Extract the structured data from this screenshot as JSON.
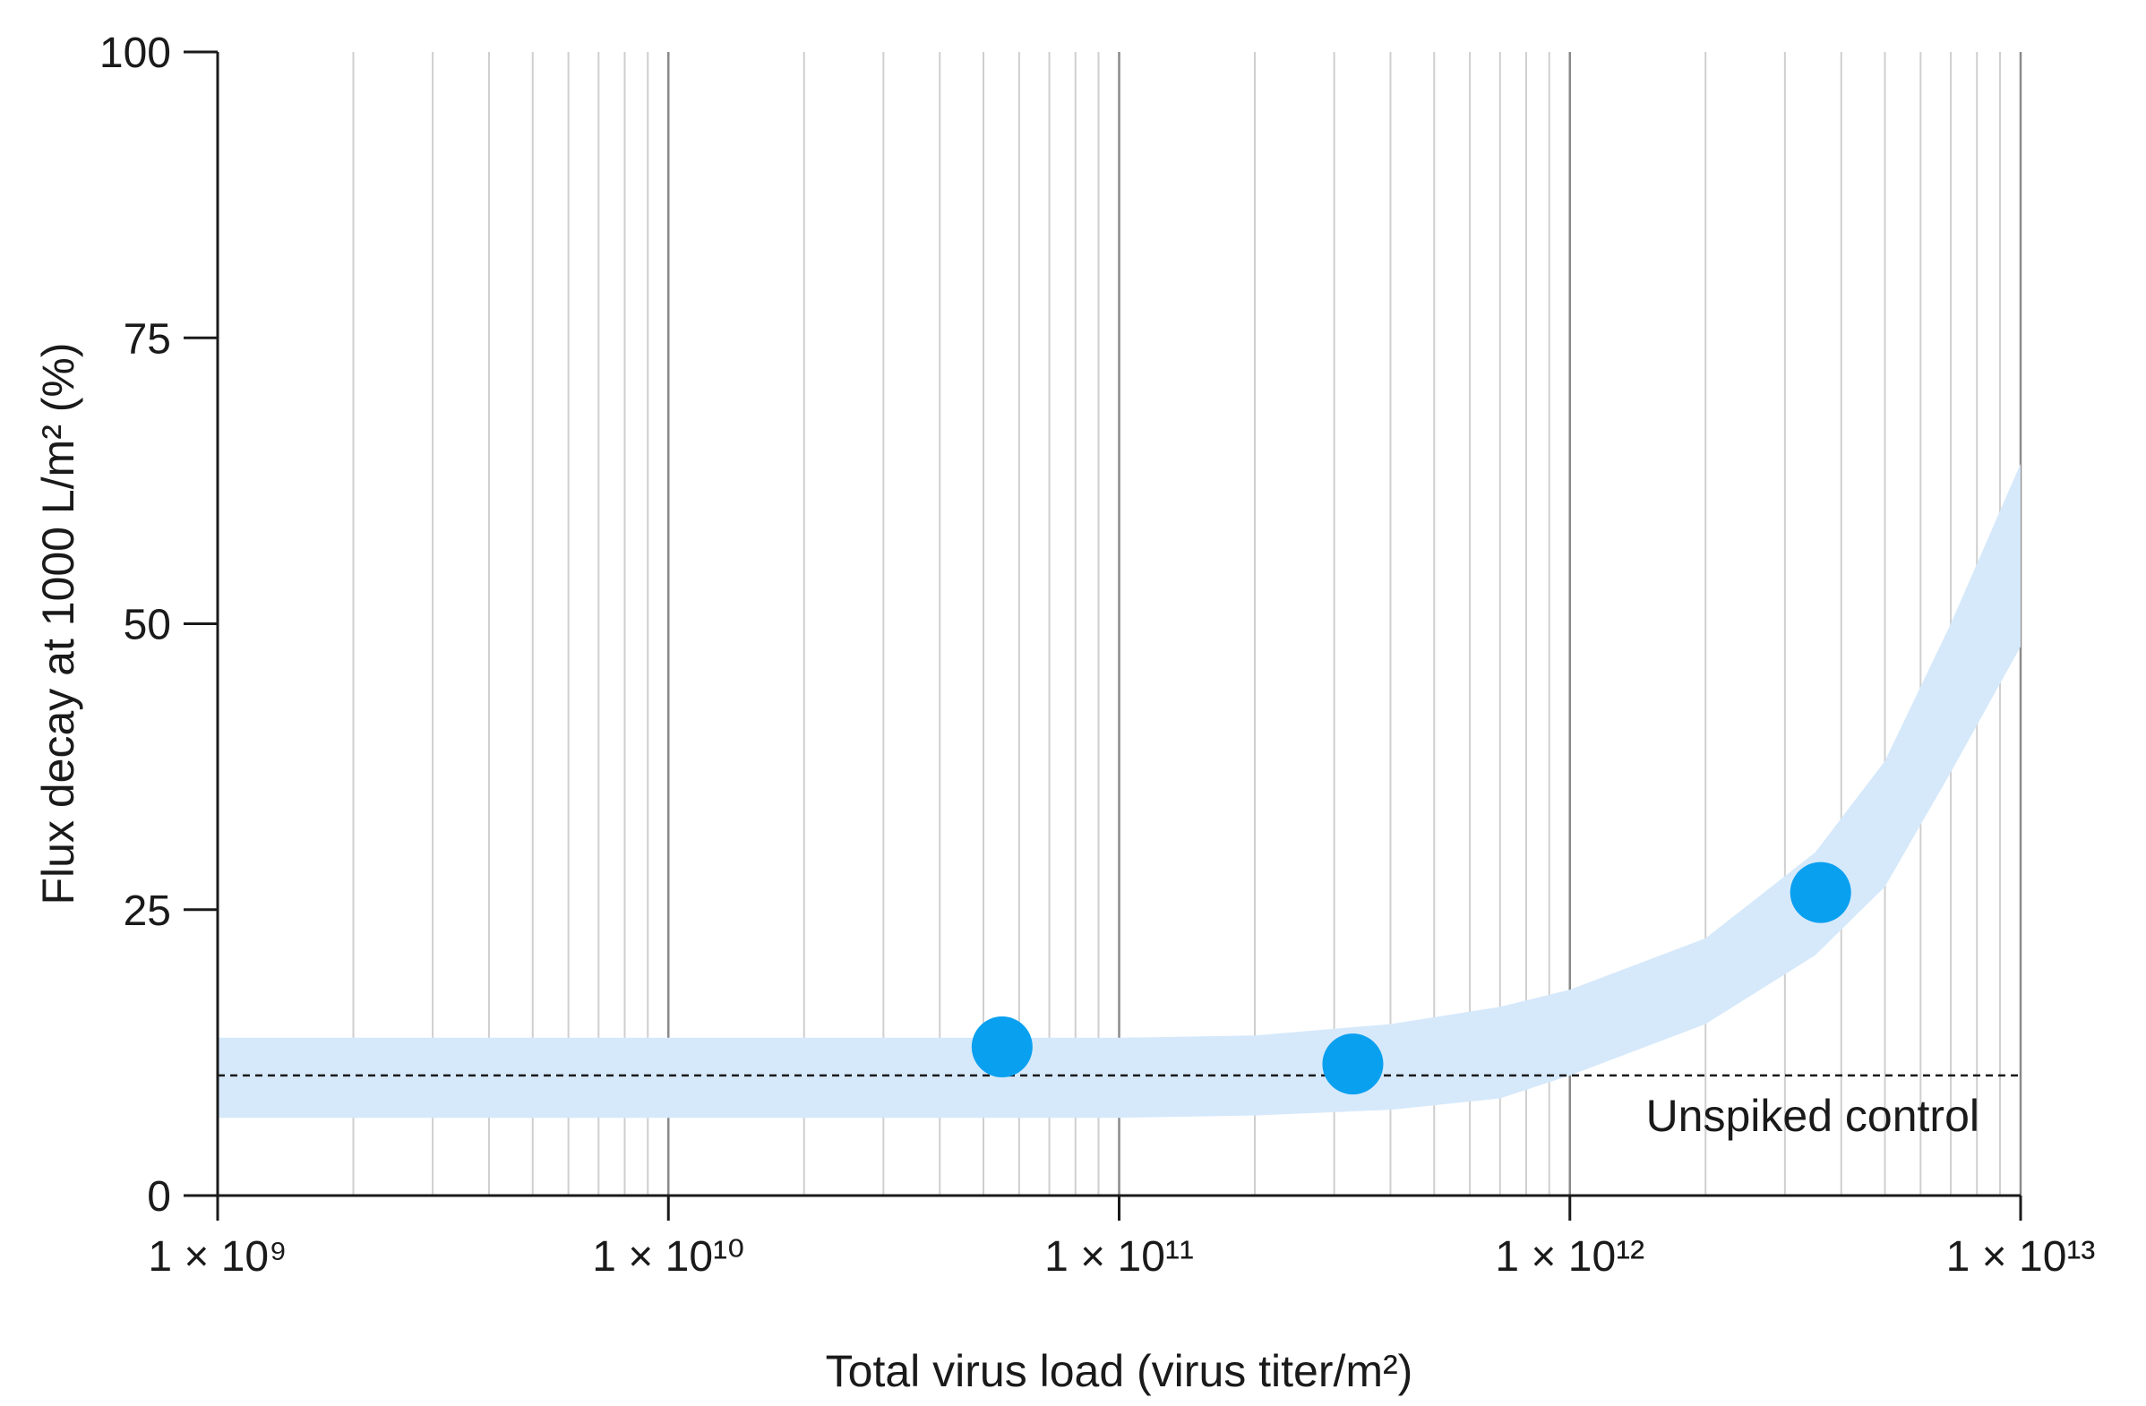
{
  "chart_data": {
    "type": "scatter",
    "xlabel": "Total virus load (virus titer/m²)",
    "ylabel": "Flux decay at 1000 L/m² (%)",
    "x_scale": "log",
    "xlim": [
      1000000000.0,
      10000000000000.0
    ],
    "ylim": [
      0,
      100
    ],
    "x_ticks": [
      1000000000.0,
      10000000000.0,
      100000000000.0,
      1000000000000.0,
      10000000000000.0
    ],
    "x_tick_labels": [
      "1 × 10⁹",
      "1 × 10¹⁰",
      "1 × 10¹¹",
      "1 × 10¹²",
      "1 × 10¹³"
    ],
    "y_ticks": [
      0,
      25,
      50,
      75,
      100
    ],
    "y_tick_labels": [
      "0",
      "25",
      "50",
      "75",
      "100"
    ],
    "grid": "vertical log grid",
    "series": [
      {
        "type": "scatter",
        "color": "#0aa0f0",
        "points": [
          {
            "x": 55000000000.0,
            "y": 13
          },
          {
            "x": 330000000000.0,
            "y": 11.5
          },
          {
            "x": 3600000000000.0,
            "y": 26.5
          }
        ]
      }
    ],
    "band": {
      "color": "#d6e9fb",
      "points": [
        {
          "x": 1000000000.0,
          "lower": 6.8,
          "upper": 13.8
        },
        {
          "x": 3000000000.0,
          "lower": 6.8,
          "upper": 13.8
        },
        {
          "x": 10000000000.0,
          "lower": 6.8,
          "upper": 13.8
        },
        {
          "x": 30000000000.0,
          "lower": 6.8,
          "upper": 13.8
        },
        {
          "x": 100000000000.0,
          "lower": 6.8,
          "upper": 13.8
        },
        {
          "x": 200000000000.0,
          "lower": 7.0,
          "upper": 14.0
        },
        {
          "x": 400000000000.0,
          "lower": 7.5,
          "upper": 15.0
        },
        {
          "x": 700000000000.0,
          "lower": 8.5,
          "upper": 16.5
        },
        {
          "x": 1000000000000.0,
          "lower": 10.5,
          "upper": 18.0
        },
        {
          "x": 2000000000000.0,
          "lower": 15.0,
          "upper": 22.5
        },
        {
          "x": 3500000000000.0,
          "lower": 21.0,
          "upper": 30.0
        },
        {
          "x": 5000000000000.0,
          "lower": 27.0,
          "upper": 38.0
        },
        {
          "x": 7000000000000.0,
          "lower": 37.0,
          "upper": 50.0
        },
        {
          "x": 10000000000000.0,
          "lower": 48.0,
          "upper": 64.0
        }
      ]
    },
    "reference_line": {
      "y": 10.5,
      "style": "dashed",
      "label": "Unspiked control"
    }
  }
}
